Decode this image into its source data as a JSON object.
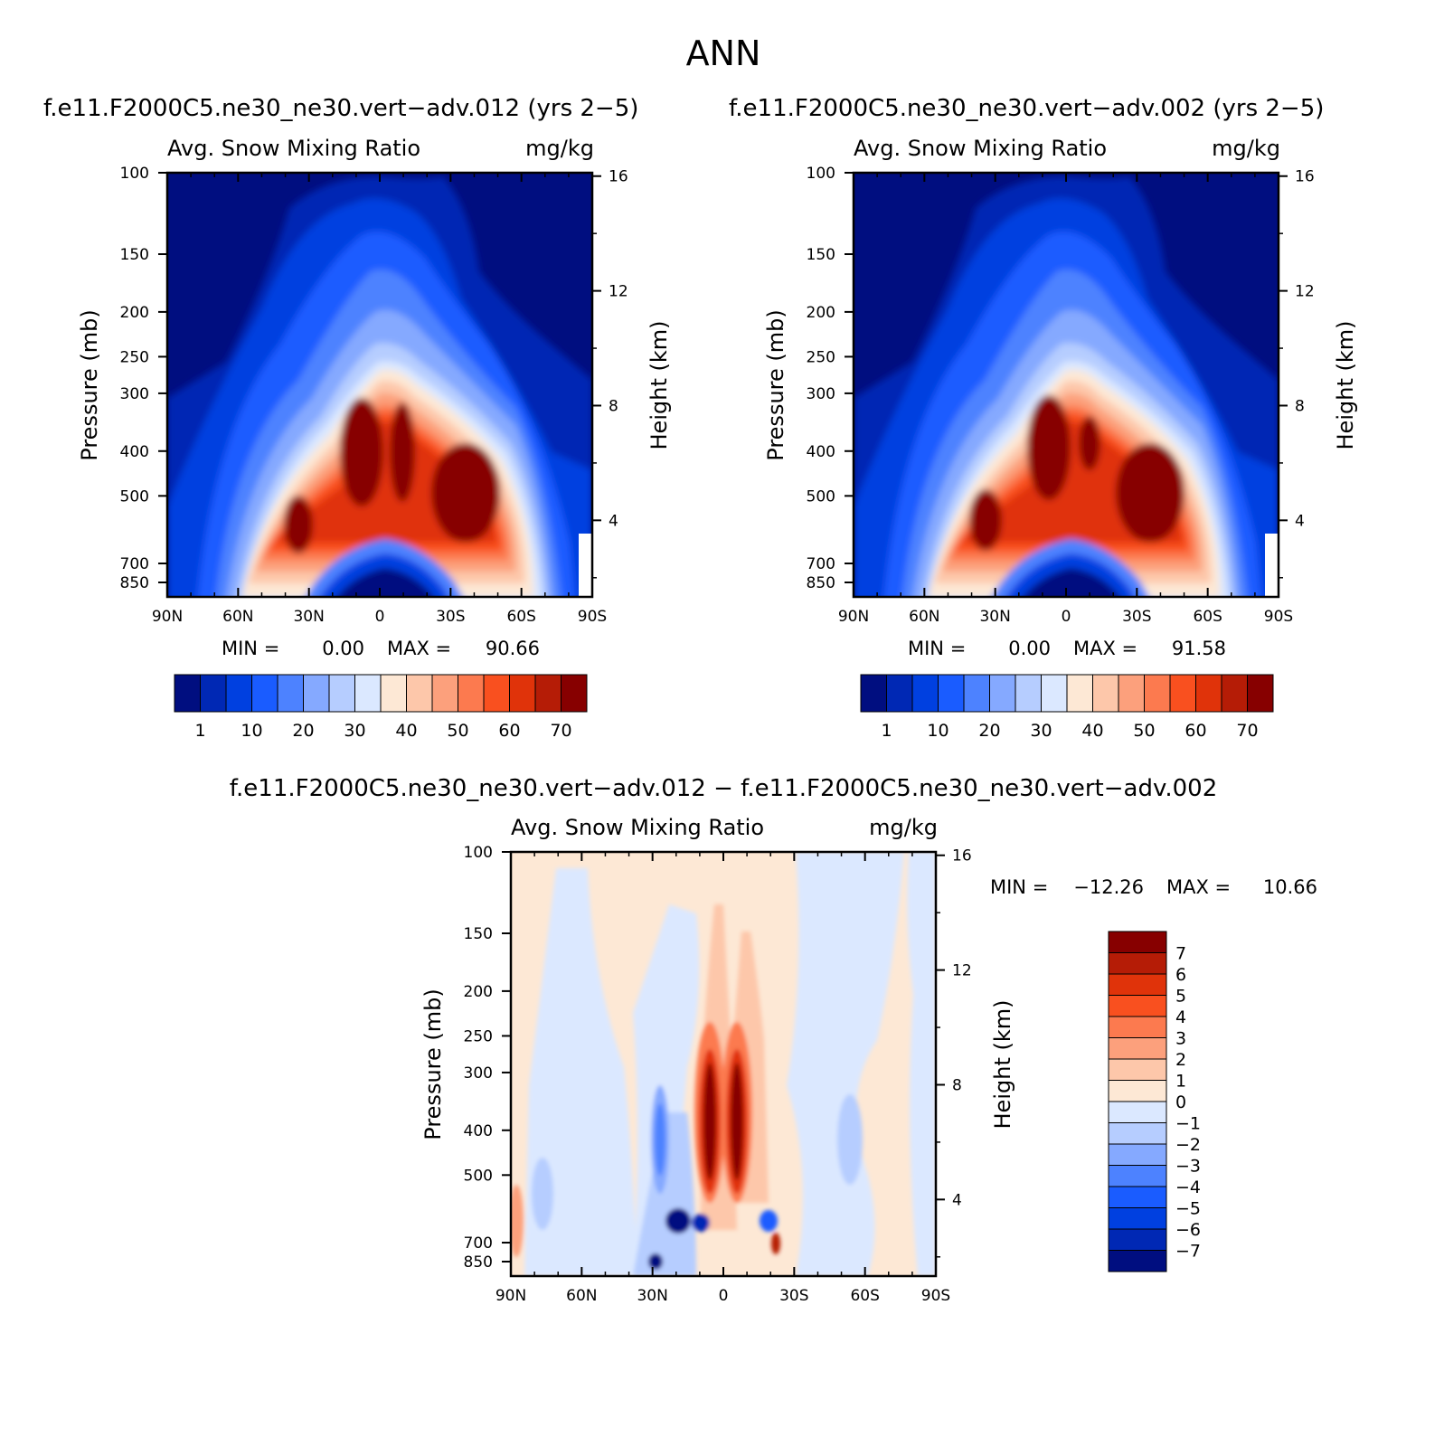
{
  "page_title": "ANN",
  "colors": {
    "full_scale": [
      "#000e80",
      "#0028b4",
      "#0040e0",
      "#1a5cff",
      "#4d82ff",
      "#85a9ff",
      "#b6cdff",
      "#dbe8ff",
      "#fde8d5",
      "#fdc7aa",
      "#fca07c",
      "#fc7a4f",
      "#f9501f",
      "#e0330a",
      "#b51c06",
      "#870000"
    ],
    "diff_scale": [
      "#000e80",
      "#0028b4",
      "#0040e0",
      "#1a5cff",
      "#4d82ff",
      "#85a9ff",
      "#b6cdff",
      "#dbe8ff",
      "#fde8d5",
      "#fdc7aa",
      "#fca07c",
      "#fc7a4f",
      "#f9501f",
      "#e0330a",
      "#b51c06",
      "#870000"
    ]
  },
  "chart_data": [
    {
      "type": "heatmap",
      "title": "f.e11.F2000C5.ne30_ne30.vert−adv.012 (yrs 2−5)",
      "subtitle_left": "Avg. Snow Mixing Ratio",
      "subtitle_right": "mg/kg",
      "ylabel": "Pressure (mb)",
      "y2label": "Height (km)",
      "xticks": [
        "90N",
        "60N",
        "30N",
        "0",
        "30S",
        "60S",
        "90S"
      ],
      "yticks": [
        "100",
        "150",
        "200",
        "250",
        "300",
        "400",
        "500",
        "700",
        "850"
      ],
      "y2ticks": [
        "16",
        "12",
        "8",
        "4"
      ],
      "min_label": "MIN =",
      "min_value": "0.00",
      "max_label": "MAX =",
      "max_value": "90.66",
      "min": 0.0,
      "max": 90.66,
      "colorbar_labels": [
        "1",
        "10",
        "20",
        "30",
        "40",
        "50",
        "60",
        "70"
      ]
    },
    {
      "type": "heatmap",
      "title": "f.e11.F2000C5.ne30_ne30.vert−adv.002 (yrs 2−5)",
      "subtitle_left": "Avg. Snow Mixing Ratio",
      "subtitle_right": "mg/kg",
      "ylabel": "Pressure (mb)",
      "y2label": "Height (km)",
      "xticks": [
        "90N",
        "60N",
        "30N",
        "0",
        "30S",
        "60S",
        "90S"
      ],
      "yticks": [
        "100",
        "150",
        "200",
        "250",
        "300",
        "400",
        "500",
        "700",
        "850"
      ],
      "y2ticks": [
        "16",
        "12",
        "8",
        "4"
      ],
      "min_label": "MIN =",
      "min_value": "0.00",
      "max_label": "MAX =",
      "max_value": "91.58",
      "min": 0.0,
      "max": 91.58,
      "colorbar_labels": [
        "1",
        "10",
        "20",
        "30",
        "40",
        "50",
        "60",
        "70"
      ]
    },
    {
      "type": "heatmap",
      "title": "f.e11.F2000C5.ne30_ne30.vert−adv.012 − f.e11.F2000C5.ne30_ne30.vert−adv.002",
      "subtitle_left": "Avg. Snow Mixing Ratio",
      "subtitle_right": "mg/kg",
      "ylabel": "Pressure (mb)",
      "y2label": "Height (km)",
      "xticks": [
        "90N",
        "60N",
        "30N",
        "0",
        "30S",
        "60S",
        "90S"
      ],
      "yticks": [
        "100",
        "150",
        "200",
        "250",
        "300",
        "400",
        "500",
        "700",
        "850"
      ],
      "y2ticks": [
        "16",
        "12",
        "8",
        "4"
      ],
      "min_label": "MIN =",
      "min_value": "−12.26",
      "max_label": "MAX =",
      "max_value": "10.66",
      "min": -12.26,
      "max": 10.66,
      "colorbar_labels": [
        "7",
        "6",
        "5",
        "4",
        "3",
        "2",
        "1",
        "0",
        "−1",
        "−2",
        "−3",
        "−4",
        "−5",
        "−6",
        "−7"
      ]
    }
  ]
}
